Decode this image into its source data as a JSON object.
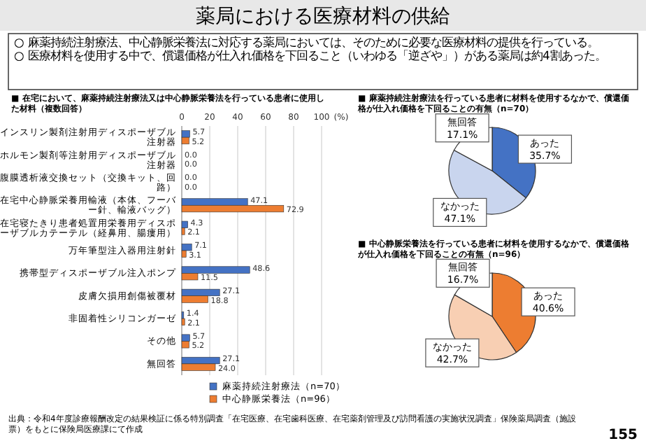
{
  "chart_data": [
    {
      "type": "other",
      "title": "薬局における医療材料の供給",
      "annotations": [
        "○ 麻薬持続注射療法、中心静脈栄養法に対応する薬局においては、そのために必要な医療材料の提供を行っている。",
        "○ 医療材料を使用する中で、償還価格が仕入れ価格を下回ること（いわゆる「逆ざや」）がある薬局は約4割あった。",
        "出典：令和4年度診療報酬改定の結果検証に係る特別調査「在宅医療、在宅歯科医療、在宅薬剤管理及び訪問看護の実施状況調査」保険薬局調査（施設票）をもとに保険局医療課にて作成",
        "155"
      ]
    },
    {
      "type": "bar",
      "orientation": "horizontal",
      "title": "■ 在宅において、麻薬持続注射療法又は中心静脈栄養法を行っている患者に使用した材料（複数回答）",
      "xlabel": "(%)",
      "categories": [
        "インスリン製剤注射用ディスポーザブル注射器",
        "ホルモン製剤等注射用ディスポーザブル注射器",
        "腹膜透析液交換セット（交換キット、回路）",
        "在宅中心静脈栄養用輸液（本体、フーバー針、輸液バッグ）",
        "在宅寝たきり患者処置用栄養用ディスポーザブルカテーテル（経鼻用、腸瘻用）",
        "万年筆型注入器用注射針",
        "携帯型ディスポーザブル注入ポンプ",
        "皮膚欠損用創傷被覆材",
        "非固着性シリコンガーゼ",
        "その他",
        "無回答"
      ],
      "series": [
        {
          "name": "麻薬持続注射療法（n=70）",
          "color": "#4472c4",
          "values": [
            5.7,
            0,
            0,
            47.1,
            4.3,
            7.1,
            48.6,
            27.1,
            1.4,
            5.7,
            27.1
          ],
          "value_labels": [
            "5.7",
            "0.0",
            "0.0",
            "47.1",
            "4.3",
            "7.1",
            "48.6",
            "27.1",
            "1.4",
            "5.7",
            "27.1"
          ]
        },
        {
          "name": "中心静脈栄養法（n=96）",
          "color": "#ed7d31",
          "values": [
            5.2,
            0,
            0,
            72.9,
            2.1,
            3.1,
            11.5,
            18.8,
            2.1,
            5.2,
            24.0
          ],
          "value_labels": [
            "5.2",
            "0.0",
            "0.0",
            "72.9",
            "2.1",
            "3.1",
            "11.5",
            "18.8",
            "2.1",
            "5.2",
            "24.0"
          ]
        }
      ],
      "xlim": [
        0,
        100
      ],
      "xticks": [
        0,
        20,
        40,
        60,
        80,
        100
      ],
      "grid": "x",
      "legend": "bottom right"
    },
    {
      "type": "pie",
      "title": "■ 麻薬持続注射療法を行っている患者に材料を使用するなかで、償還価格が仕入れ価格を下回ることの有無（n=70）",
      "categories": [
        "あった",
        "なかった",
        "無回答"
      ],
      "values": [
        35.7,
        47.1,
        17.1
      ],
      "value_labels": [
        "35.7%",
        "47.1%",
        "17.1%"
      ],
      "colors": [
        "#4472c4",
        "#c9d5ee",
        "#ffffff"
      ]
    },
    {
      "type": "pie",
      "title": "■ 中心静脈栄養法を行っている患者に材料を使用するなかで、償還価格が仕入れ価格を下回ることの有無（n=96）",
      "categories": [
        "あった",
        "なかった",
        "無回答"
      ],
      "values": [
        40.6,
        42.7,
        16.7
      ],
      "value_labels": [
        "40.6%",
        "42.7%",
        "16.7%"
      ],
      "colors": [
        "#ed7d31",
        "#f8cfb3",
        "#ffffff"
      ]
    }
  ]
}
